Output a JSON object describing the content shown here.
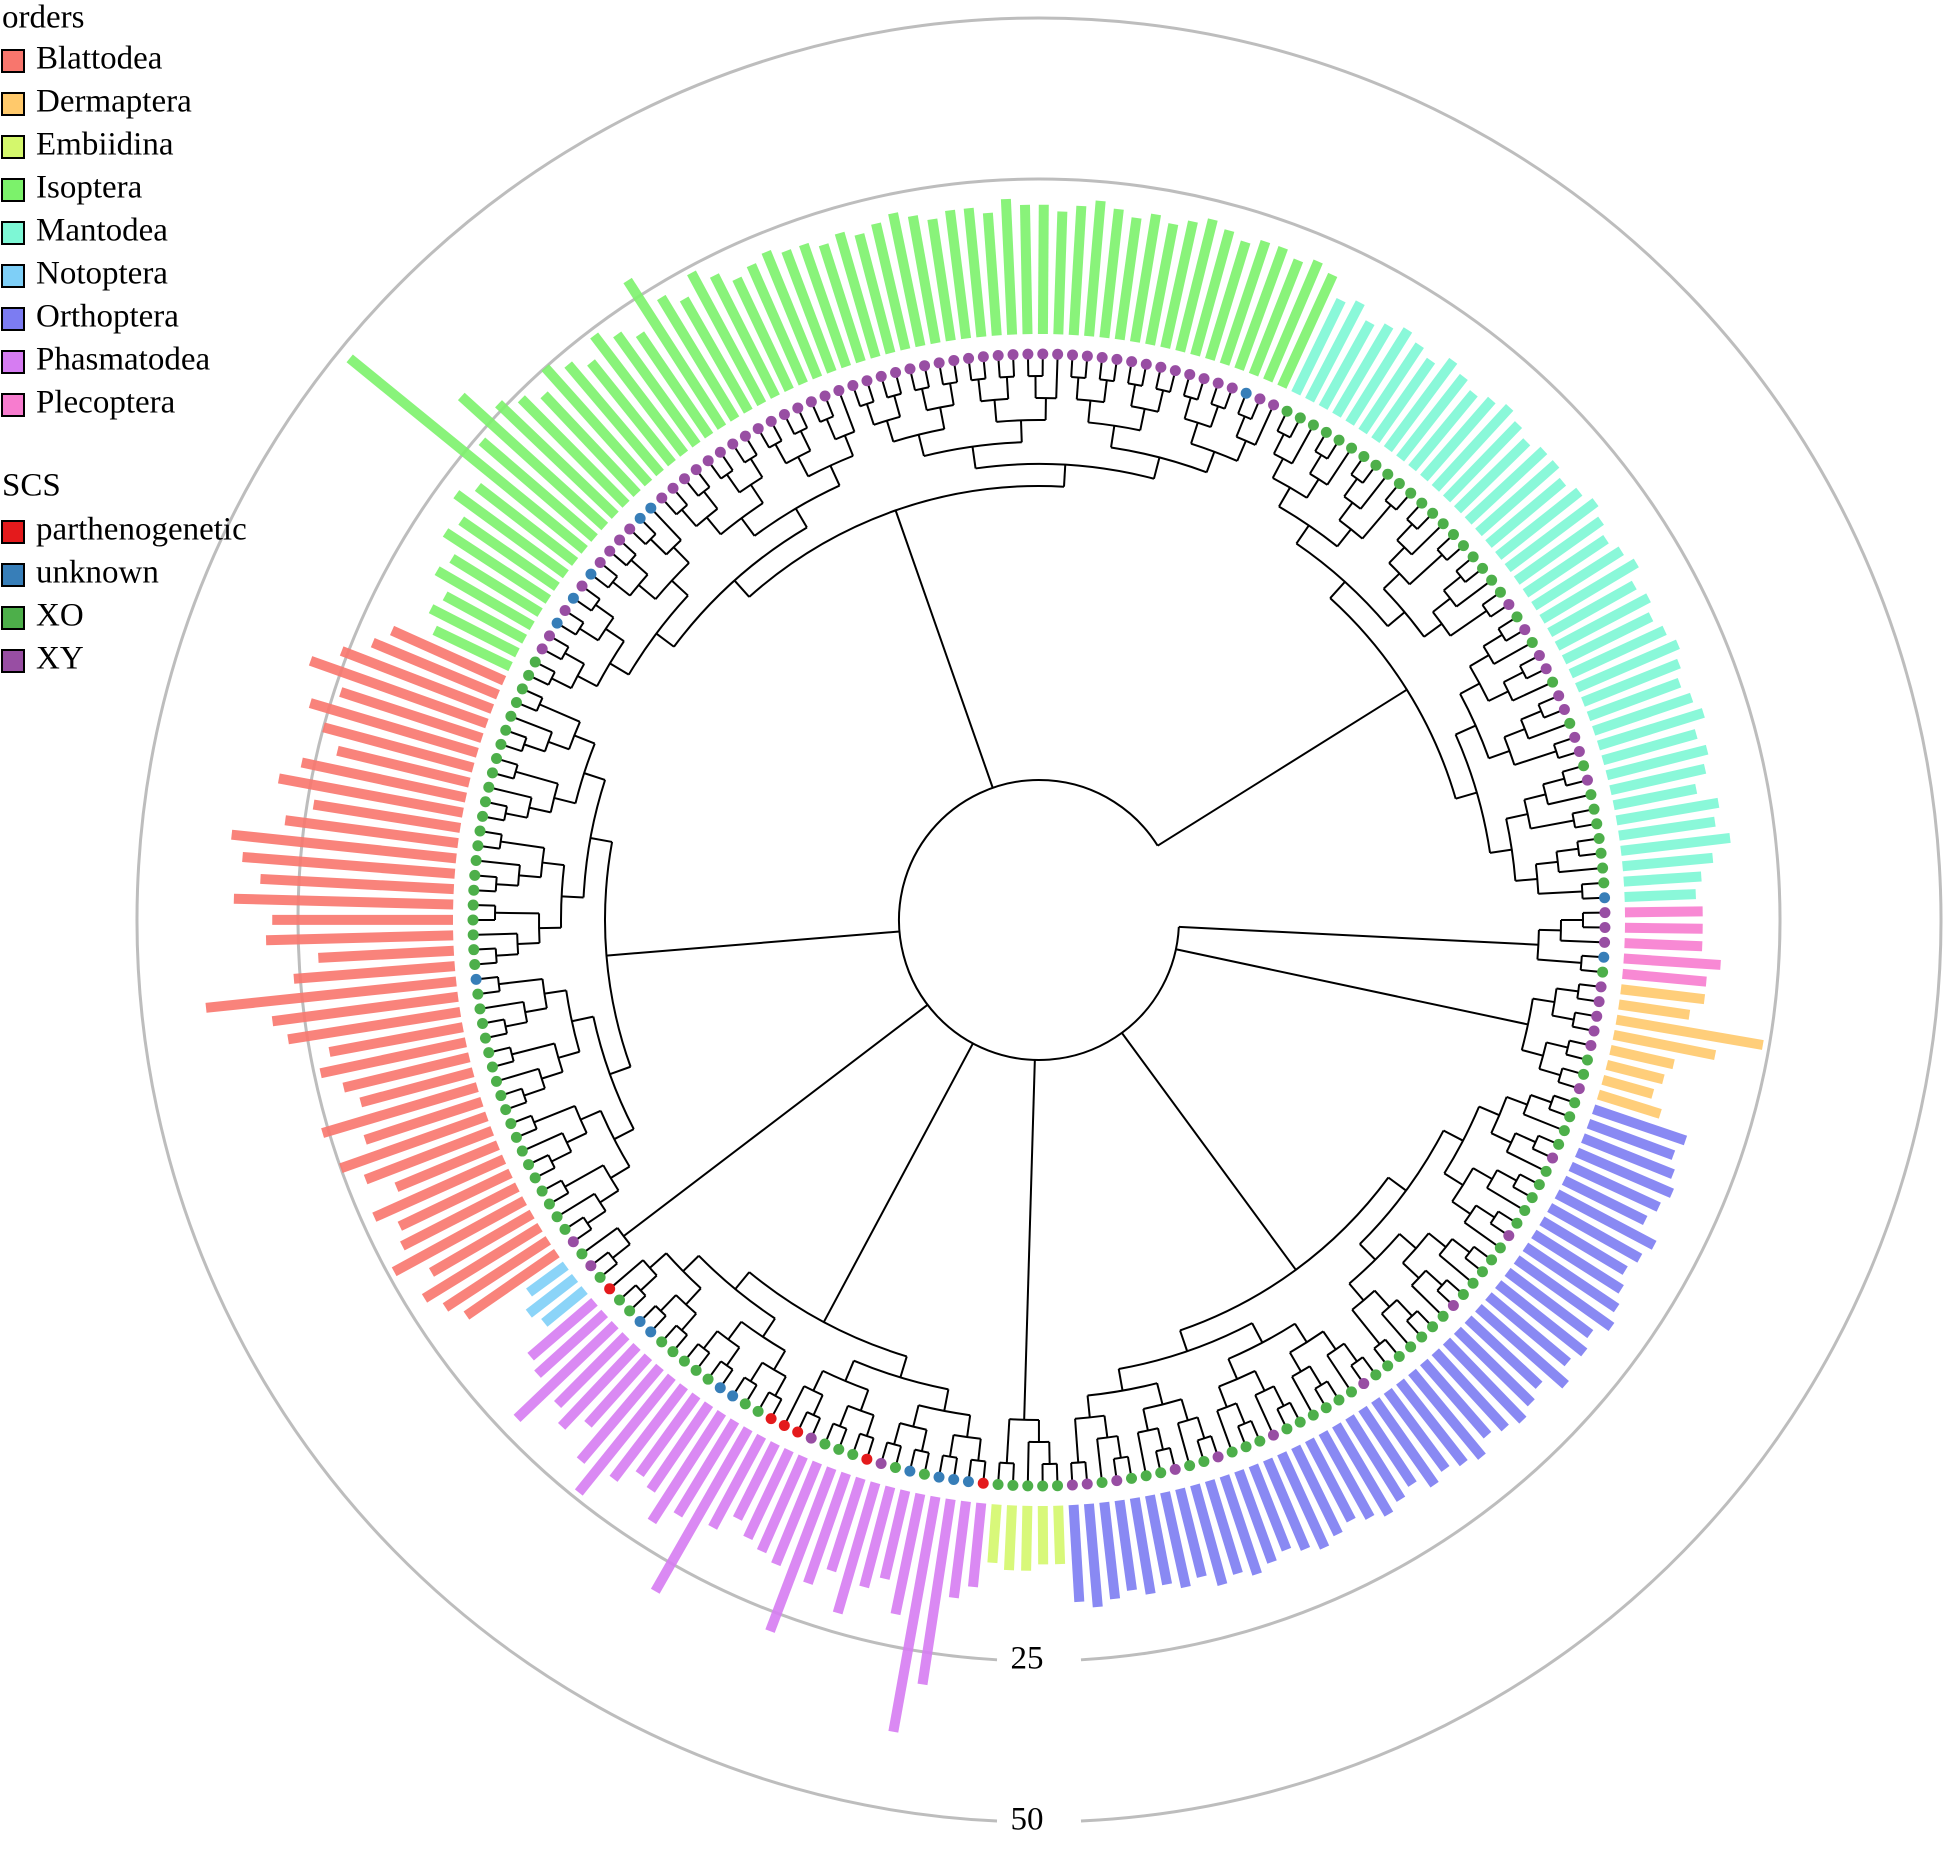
{
  "chart_data": {
    "type": "radial_bar",
    "legend_title": "orders",
    "rlim": [
      0,
      50
    ],
    "rticks": [
      25,
      50
    ],
    "series": [
      {
        "name": "Plecoptera",
        "color": "#f77ccf",
        "values": [
          13,
          13,
          13,
          16,
          14
        ],
        "scs": [
          "XY",
          "XY",
          "XY",
          "unknown",
          "XO"
        ]
      },
      {
        "name": "Dermaptera",
        "color": "#ffc96b",
        "values": [
          14,
          12,
          24,
          17,
          11,
          10,
          9,
          11
        ],
        "scs": [
          "XY",
          "XY",
          "XY",
          "XY",
          "XY",
          "XO",
          "XO",
          "XY"
        ]
      },
      {
        "name": "Orthoptera",
        "color": "#7c7cf2",
        "values": [
          16,
          15,
          16,
          17,
          16,
          15,
          18,
          17,
          16,
          17,
          18,
          19,
          17,
          18,
          17,
          19,
          16,
          17,
          18,
          17,
          16,
          18,
          17,
          16,
          17,
          15,
          16,
          17,
          16,
          15,
          16,
          17,
          16,
          15,
          16,
          17,
          16,
          17,
          15,
          16,
          15,
          16,
          15,
          16,
          17,
          16
        ],
        "scs": [
          "XO",
          "XO",
          "XO",
          "XO",
          "XY",
          "XO",
          "XO",
          "XO",
          "XO",
          "XO",
          "XY",
          "XO",
          "XO",
          "XO",
          "XO",
          "XO",
          "XY",
          "XO",
          "XO",
          "XO",
          "XO",
          "XO",
          "XO",
          "XO",
          "XY",
          "XO",
          "XO",
          "XO",
          "XO",
          "XO",
          "XO",
          "XY",
          "XO",
          "XO",
          "XO",
          "XY",
          "XO",
          "XO",
          "XY",
          "XO",
          "XO",
          "XO",
          "XY",
          "XO",
          "XY",
          "XY"
        ]
      },
      {
        "name": "Embiidina",
        "color": "#d4f76c",
        "values": [
          10,
          10,
          11,
          11,
          10
        ],
        "scs": [
          "XO",
          "XO",
          "XO",
          "XO",
          "XO"
        ]
      },
      {
        "name": "Phasmatodea",
        "color": "#d67cf2",
        "values": [
          14,
          16,
          30,
          38,
          20,
          15,
          17,
          22,
          16,
          19,
          28,
          18,
          17,
          16,
          14,
          17,
          30,
          18,
          21,
          17,
          16,
          19,
          24,
          20,
          15,
          18,
          16,
          22,
          15,
          14
        ],
        "scs": [
          "parthenogenetic",
          "unknown",
          "unknown",
          "unknown",
          "XO",
          "unknown",
          "XO",
          "XY",
          "parthenogenetic",
          "XO",
          "XO",
          "XO",
          "XY",
          "parthenogenetic",
          "parthenogenetic",
          "parthenogenetic",
          "XO",
          "XO",
          "unknown",
          "unknown",
          "XO",
          "XO",
          "XO",
          "XO",
          "XO",
          "unknown",
          "unknown",
          "XO",
          "XO",
          "parthenogenetic"
        ]
      },
      {
        "name": "Notoptera",
        "color": "#7ecff7",
        "values": [
          9,
          10,
          8
        ],
        "scs": [
          "XO",
          "XY",
          "XO"
        ]
      },
      {
        "name": "Blattodea",
        "color": "#f8766d",
        "values": [
          18,
          20,
          22,
          19,
          24,
          21,
          20,
          23,
          18,
          22,
          25,
          20,
          26,
          19,
          21,
          24,
          22,
          28,
          30,
          40,
          26,
          22,
          30,
          29,
          35,
          31,
          34,
          36,
          28,
          24,
          30,
          27,
          22,
          25,
          28,
          24,
          30,
          26,
          22,
          20
        ],
        "scs": [
          "XY",
          "XO",
          "XO",
          "XO",
          "XO",
          "XO",
          "XO",
          "XO",
          "XO",
          "XO",
          "XO",
          "XO",
          "XO",
          "XO",
          "XO",
          "XO",
          "XO",
          "XO",
          "XO",
          "unknown",
          "XO",
          "XO",
          "XO",
          "XO",
          "XO",
          "XO",
          "XO",
          "XO",
          "XO",
          "XO",
          "XO",
          "XO",
          "XO",
          "XO",
          "XO",
          "XO",
          "XO",
          "XO",
          "XO",
          "XO"
        ]
      },
      {
        "name": "Isoptera",
        "color": "#7cf26b",
        "values": [
          14,
          16,
          15,
          18,
          17,
          20,
          19,
          22,
          20,
          48,
          24,
          31,
          26,
          24,
          22,
          25,
          23,
          21,
          24,
          22,
          20,
          28,
          23,
          21,
          24,
          22,
          20,
          21,
          22,
          21,
          21,
          20,
          21,
          20,
          21,
          22,
          21,
          20,
          21,
          21,
          20,
          22,
          21,
          21,
          20,
          21,
          22,
          21,
          20,
          21,
          20,
          21,
          22,
          21,
          20,
          21,
          21,
          20,
          21,
          20
        ],
        "scs": [
          "XO",
          "XO",
          "XY",
          "XY",
          "unknown",
          "XY",
          "unknown",
          "XY",
          "unknown",
          "XY",
          "XY",
          "XY",
          "XY",
          "unknown",
          "unknown",
          "XY",
          "XY",
          "XY",
          "XY",
          "XY",
          "XY",
          "XY",
          "XY",
          "XY",
          "XY",
          "XY",
          "XY",
          "XY",
          "XY",
          "XY",
          "XY",
          "XY",
          "XY",
          "XY",
          "XY",
          "XY",
          "XY",
          "XY",
          "XY",
          "XY",
          "XY",
          "XY",
          "XY",
          "XY",
          "XY",
          "XY",
          "XY",
          "XY",
          "XY",
          "XY",
          "XY",
          "XY",
          "XY",
          "XY",
          "XY",
          "XY",
          "XY",
          "unknown",
          "XY",
          "XY"
        ]
      },
      {
        "name": "Mantodea",
        "color": "#7df7d5",
        "values": [
          17,
          18,
          16,
          17,
          18,
          17,
          16,
          18,
          17,
          16,
          17,
          18,
          17,
          16,
          17,
          17,
          16,
          17,
          18,
          17,
          16,
          17,
          18,
          16,
          17,
          16,
          17,
          18,
          17,
          16,
          17,
          18,
          16,
          17,
          16,
          14,
          17,
          16,
          18,
          15,
          13,
          12
        ],
        "scs": [
          "XO",
          "XO",
          "XO",
          "XO",
          "XO",
          "XO",
          "XO",
          "XO",
          "XO",
          "XO",
          "XO",
          "XO",
          "XO",
          "XO",
          "XO",
          "XO",
          "XO",
          "XO",
          "XO",
          "XO",
          "XY",
          "XO",
          "XY",
          "XO",
          "XY",
          "XY",
          "XO",
          "XY",
          "XY",
          "XO",
          "XY",
          "XY",
          "XO",
          "XY",
          "XO",
          "XO",
          "XO",
          "XO",
          "XO",
          "XO",
          "XO",
          "unknown"
        ]
      }
    ],
    "scs_legend": {
      "title": "SCS",
      "items": [
        {
          "name": "parthenogenetic",
          "color": "#e41a1c"
        },
        {
          "name": "unknown",
          "color": "#377eb8"
        },
        {
          "name": "XO",
          "color": "#4daf4a"
        },
        {
          "name": "XY",
          "color": "#984ea3"
        }
      ]
    }
  }
}
